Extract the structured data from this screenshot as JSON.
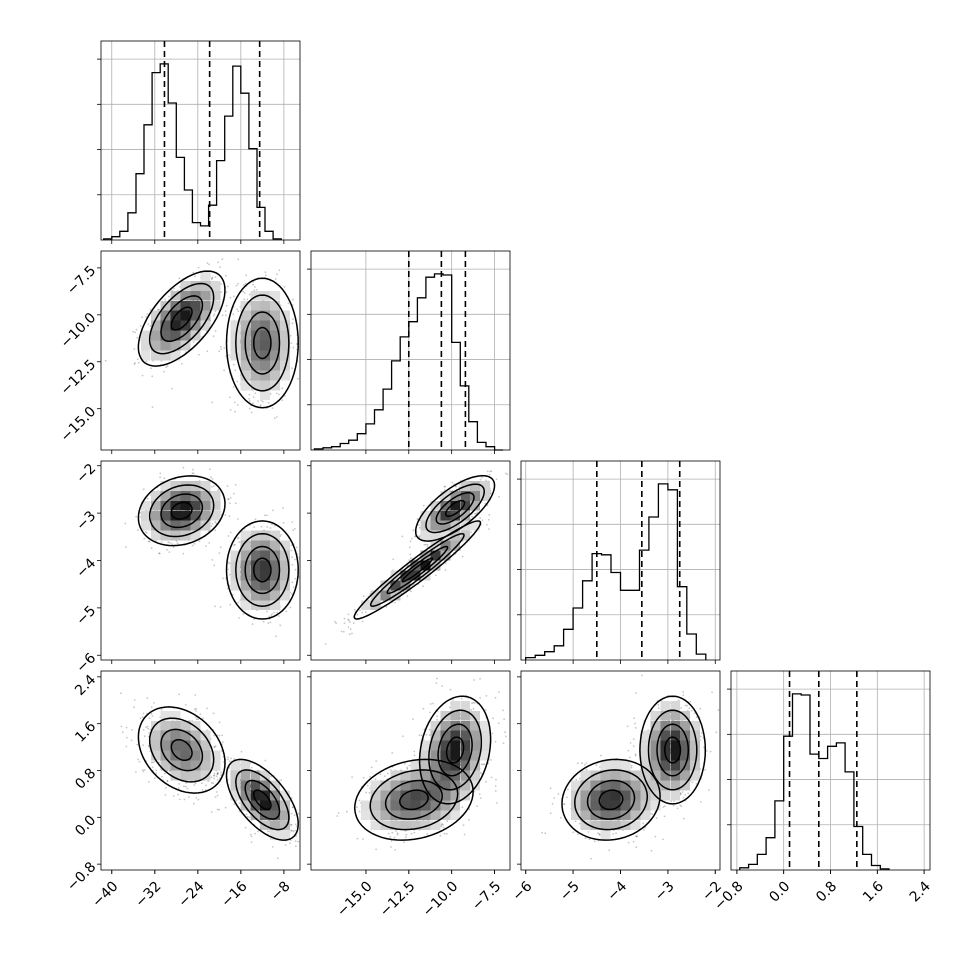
{
  "chart_data": [
    {
      "type": "histogram",
      "panel": "diag-param1",
      "grid": true,
      "xlim": [
        -42,
        -5
      ],
      "bin_width": 1.5,
      "bin_start": -41.5,
      "counts": [
        1,
        3,
        8,
        25,
        61,
        106,
        154,
        162,
        126,
        76,
        46,
        16,
        13,
        32,
        73,
        114,
        160,
        135,
        84,
        30,
        8,
        1
      ],
      "quantile_lines": [
        -30.2,
        -21.8,
        -12.5
      ],
      "x_ticks": [
        -40,
        -32,
        -24,
        -16,
        -8
      ]
    },
    {
      "type": "histogram",
      "panel": "diag-param2",
      "grid": true,
      "xlim": [
        -18.2,
        -6.6
      ],
      "bin_width": 0.5,
      "bin_start": -18.0,
      "counts": [
        1,
        2,
        3,
        6,
        9,
        15,
        24,
        37,
        56,
        82,
        104,
        118,
        140,
        159,
        162,
        161,
        99,
        59,
        26,
        7,
        3,
        0
      ],
      "quantile_lines": [
        -12.5,
        -10.6,
        -9.2
      ],
      "x_ticks": [
        -15.0,
        -12.5,
        -10.0,
        -7.5
      ]
    },
    {
      "type": "histogram",
      "panel": "diag-param3",
      "grid": true,
      "xlim": [
        -6.1,
        -1.9
      ],
      "bin_width": 0.2,
      "bin_start": -6.0,
      "counts": [
        2,
        4,
        7,
        12,
        26,
        44,
        67,
        90,
        89,
        74,
        59,
        59,
        93,
        121,
        149,
        144,
        62,
        22,
        5
      ],
      "quantile_lines": [
        -4.5,
        -3.55,
        -2.75
      ],
      "y_ticks": [
        -6,
        -5,
        -4,
        -3,
        -2
      ],
      "x_ticks": [
        -6,
        -5,
        -4,
        -3,
        -2
      ]
    },
    {
      "type": "histogram",
      "panel": "diag-param4",
      "grid": true,
      "xlim": [
        -0.9,
        2.5
      ],
      "bin_width": 0.15,
      "bin_start": -0.75,
      "counts": [
        2,
        5,
        14,
        29,
        62,
        120,
        158,
        157,
        104,
        100,
        111,
        114,
        88,
        39,
        14,
        4,
        1
      ],
      "quantile_lines": [
        0.1,
        0.6,
        1.25
      ],
      "y_ticks": [
        -0.8,
        0.0,
        0.8,
        1.6,
        2.4
      ],
      "x_ticks": [
        -0.8,
        0.0,
        0.8,
        1.6,
        2.4
      ]
    },
    {
      "type": "scatter",
      "panel": "param1-vs-param2",
      "xlim": [
        -42,
        -5
      ],
      "ylim": [
        -17.2,
        -6.6
      ],
      "y_ticks": [
        -15.0,
        -12.5,
        -10.0,
        -7.5
      ],
      "modes": [
        {
          "center": [
            -27,
            -10.2
          ],
          "spread": [
            3.5,
            1.1
          ],
          "corr": 0.6,
          "weight": 0.5
        },
        {
          "center": [
            -12,
            -11.5
          ],
          "spread": [
            2.9,
            1.5
          ],
          "corr": 0.0,
          "weight": 0.5
        }
      ]
    },
    {
      "type": "scatter",
      "panel": "param1-vs-param3",
      "xlim": [
        -42,
        -5
      ],
      "ylim": [
        -6.1,
        -1.9
      ],
      "modes": [
        {
          "center": [
            -27,
            -2.95
          ],
          "spread": [
            3.5,
            0.32
          ],
          "corr": 0.2,
          "weight": 0.5
        },
        {
          "center": [
            -12,
            -4.2
          ],
          "spread": [
            2.9,
            0.45
          ],
          "corr": 0.0,
          "weight": 0.5
        }
      ]
    },
    {
      "type": "scatter",
      "panel": "param2-vs-param3",
      "xlim": [
        -18.2,
        -6.6
      ],
      "ylim": [
        -6.1,
        -1.9
      ],
      "modes": [
        {
          "center": [
            -12.0,
            -4.2
          ],
          "spread": [
            1.6,
            0.45
          ],
          "corr": 0.96,
          "weight": 0.5
        },
        {
          "center": [
            -9.8,
            -2.9
          ],
          "spread": [
            1.0,
            0.3
          ],
          "corr": 0.7,
          "weight": 0.5
        }
      ]
    },
    {
      "type": "scatter",
      "panel": "param1-vs-param4",
      "xlim": [
        -42,
        -5
      ],
      "ylim": [
        -0.9,
        2.5
      ],
      "modes": [
        {
          "center": [
            -27,
            1.15
          ],
          "spread": [
            3.5,
            0.32
          ],
          "corr": -0.3,
          "weight": 0.5
        },
        {
          "center": [
            -12,
            0.3
          ],
          "spread": [
            2.9,
            0.3
          ],
          "corr": -0.6,
          "weight": 0.5
        }
      ]
    },
    {
      "type": "scatter",
      "panel": "param2-vs-param4",
      "xlim": [
        -18.2,
        -6.6
      ],
      "ylim": [
        -0.9,
        2.5
      ],
      "modes": [
        {
          "center": [
            -12.2,
            0.3
          ],
          "spread": [
            1.5,
            0.3
          ],
          "corr": 0.2,
          "weight": 0.5
        },
        {
          "center": [
            -9.8,
            1.15
          ],
          "spread": [
            0.9,
            0.4
          ],
          "corr": 0.2,
          "weight": 0.5
        }
      ]
    },
    {
      "type": "scatter",
      "panel": "param3-vs-param4",
      "xlim": [
        -6.1,
        -1.9
      ],
      "ylim": [
        -0.9,
        2.5
      ],
      "modes": [
        {
          "center": [
            -4.2,
            0.3
          ],
          "spread": [
            0.45,
            0.3
          ],
          "corr": 0.1,
          "weight": 0.5
        },
        {
          "center": [
            -2.9,
            1.15
          ],
          "spread": [
            0.3,
            0.4
          ],
          "corr": 0.0,
          "weight": 0.5
        }
      ]
    }
  ]
}
